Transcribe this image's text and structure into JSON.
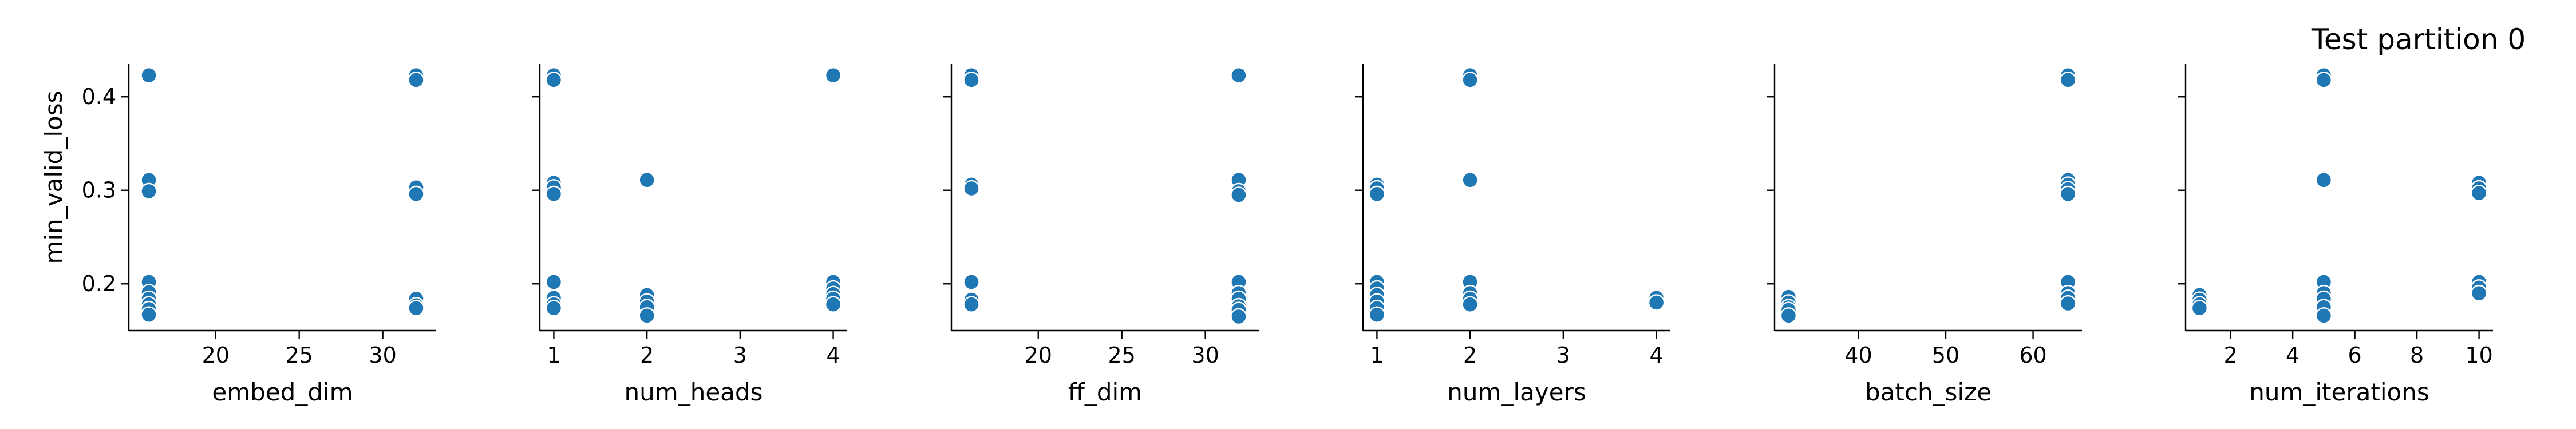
{
  "figure": {
    "title": "Test partition 0",
    "ylabel": "min_valid_loss",
    "yticks": [
      0.2,
      0.3,
      0.4
    ],
    "ylim": [
      0.15,
      0.435
    ],
    "point_color": "#1f77b4"
  },
  "chart_data": [
    {
      "type": "scatter",
      "xlabel": "embed_dim",
      "ylabel": "min_valid_loss",
      "xlim": [
        14.8,
        33.2
      ],
      "xticks": [
        20,
        25,
        30
      ],
      "points": [
        [
          16,
          0.423
        ],
        [
          16,
          0.311
        ],
        [
          16,
          0.299
        ],
        [
          16,
          0.202
        ],
        [
          16,
          0.191
        ],
        [
          16,
          0.184
        ],
        [
          16,
          0.178
        ],
        [
          16,
          0.173
        ],
        [
          16,
          0.167
        ],
        [
          32,
          0.423
        ],
        [
          32,
          0.418
        ],
        [
          32,
          0.303
        ],
        [
          32,
          0.296
        ],
        [
          32,
          0.184
        ],
        [
          32,
          0.177
        ],
        [
          32,
          0.174
        ]
      ]
    },
    {
      "type": "scatter",
      "xlabel": "num_heads",
      "ylabel": "",
      "xlim": [
        0.85,
        4.15
      ],
      "xticks": [
        1,
        2,
        3,
        4
      ],
      "points": [
        [
          1,
          0.423
        ],
        [
          1,
          0.418
        ],
        [
          1,
          0.308
        ],
        [
          1,
          0.303
        ],
        [
          1,
          0.296
        ],
        [
          1,
          0.202
        ],
        [
          1,
          0.185
        ],
        [
          1,
          0.178
        ],
        [
          1,
          0.174
        ],
        [
          2,
          0.311
        ],
        [
          2,
          0.188
        ],
        [
          2,
          0.181
        ],
        [
          2,
          0.175
        ],
        [
          2,
          0.166
        ],
        [
          4,
          0.423
        ],
        [
          4,
          0.202
        ],
        [
          4,
          0.195
        ],
        [
          4,
          0.189
        ],
        [
          4,
          0.184
        ],
        [
          4,
          0.178
        ]
      ]
    },
    {
      "type": "scatter",
      "xlabel": "ff_dim",
      "ylabel": "",
      "xlim": [
        14.8,
        33.2
      ],
      "xticks": [
        20,
        25,
        30
      ],
      "points": [
        [
          16,
          0.423
        ],
        [
          16,
          0.418
        ],
        [
          16,
          0.306
        ],
        [
          16,
          0.302
        ],
        [
          16,
          0.202
        ],
        [
          16,
          0.183
        ],
        [
          16,
          0.178
        ],
        [
          32,
          0.423
        ],
        [
          32,
          0.311
        ],
        [
          32,
          0.299
        ],
        [
          32,
          0.295
        ],
        [
          32,
          0.202
        ],
        [
          32,
          0.19
        ],
        [
          32,
          0.184
        ],
        [
          32,
          0.176
        ],
        [
          32,
          0.172
        ],
        [
          32,
          0.165
        ]
      ]
    },
    {
      "type": "scatter",
      "xlabel": "num_layers",
      "ylabel": "",
      "xlim": [
        0.85,
        4.15
      ],
      "xticks": [
        1,
        2,
        3,
        4
      ],
      "points": [
        [
          1,
          0.306
        ],
        [
          1,
          0.302
        ],
        [
          1,
          0.296
        ],
        [
          1,
          0.202
        ],
        [
          1,
          0.195
        ],
        [
          1,
          0.188
        ],
        [
          1,
          0.181
        ],
        [
          1,
          0.174
        ],
        [
          1,
          0.167
        ],
        [
          2,
          0.423
        ],
        [
          2,
          0.418
        ],
        [
          2,
          0.311
        ],
        [
          2,
          0.202
        ],
        [
          2,
          0.19
        ],
        [
          2,
          0.184
        ],
        [
          2,
          0.178
        ],
        [
          4,
          0.185
        ],
        [
          4,
          0.18
        ]
      ]
    },
    {
      "type": "scatter",
      "xlabel": "batch_size",
      "ylabel": "",
      "xlim": [
        30.4,
        65.6
      ],
      "xticks": [
        40,
        50,
        60
      ],
      "points": [
        [
          32,
          0.186
        ],
        [
          32,
          0.18
        ],
        [
          32,
          0.175
        ],
        [
          32,
          0.172
        ],
        [
          32,
          0.166
        ],
        [
          64,
          0.423
        ],
        [
          64,
          0.418
        ],
        [
          64,
          0.311
        ],
        [
          64,
          0.306
        ],
        [
          64,
          0.301
        ],
        [
          64,
          0.296
        ],
        [
          64,
          0.202
        ],
        [
          64,
          0.19
        ],
        [
          64,
          0.185
        ],
        [
          64,
          0.179
        ]
      ]
    },
    {
      "type": "scatter",
      "xlabel": "num_iterations",
      "ylabel": "",
      "xlim": [
        0.55,
        10.45
      ],
      "xticks": [
        2,
        4,
        6,
        8,
        10
      ],
      "points": [
        [
          1,
          0.188
        ],
        [
          1,
          0.183
        ],
        [
          1,
          0.178
        ],
        [
          1,
          0.174
        ],
        [
          5,
          0.423
        ],
        [
          5,
          0.418
        ],
        [
          5,
          0.311
        ],
        [
          5,
          0.202
        ],
        [
          5,
          0.19
        ],
        [
          5,
          0.184
        ],
        [
          5,
          0.175
        ],
        [
          5,
          0.166
        ],
        [
          10,
          0.308
        ],
        [
          10,
          0.302
        ],
        [
          10,
          0.297
        ],
        [
          10,
          0.202
        ],
        [
          10,
          0.196
        ],
        [
          10,
          0.19
        ]
      ]
    }
  ]
}
